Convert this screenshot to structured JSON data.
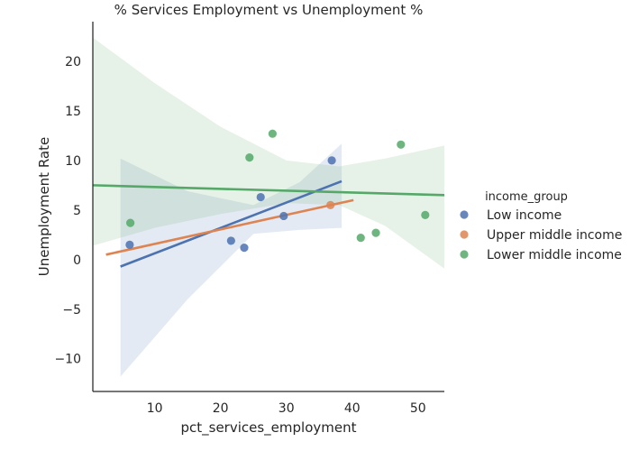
{
  "chart_data": {
    "type": "scatter",
    "title": "% Services Employment vs Unemployment %",
    "xlabel": "pct_services_employment",
    "ylabel": "Unemployment Rate",
    "xlim": [
      0.6,
      54
    ],
    "ylim": [
      -13.3,
      24
    ],
    "xticks": [
      10,
      20,
      30,
      40,
      50
    ],
    "yticks": [
      -10,
      -5,
      0,
      5,
      10,
      15,
      20
    ],
    "xtick_labels": [
      "10",
      "20",
      "30",
      "40",
      "50"
    ],
    "ytick_labels": [
      "−10",
      "−5",
      "0",
      "5",
      "10",
      "15",
      "20"
    ],
    "grid": false,
    "legend": {
      "title": "income_group",
      "placement": "right"
    },
    "series": [
      {
        "name": "Low income",
        "color": "#4c72b0",
        "points": [
          [
            6.2,
            1.5
          ],
          [
            21.6,
            1.9
          ],
          [
            23.6,
            1.2
          ],
          [
            26.1,
            6.3
          ],
          [
            29.6,
            4.4
          ],
          [
            36.9,
            10.0
          ]
        ],
        "fit": [
          [
            4.8,
            -0.7
          ],
          [
            38.4,
            7.9
          ]
        ],
        "band": [
          [
            4.8,
            -11.8,
            10.2
          ],
          [
            15,
            -4.0,
            6.9
          ],
          [
            25,
            2.6,
            5.5
          ],
          [
            32,
            3.0,
            7.8
          ],
          [
            38.4,
            3.2,
            11.7
          ]
        ]
      },
      {
        "name": "Upper middle income",
        "color": "#dd8452",
        "points": [
          [
            36.7,
            5.5
          ]
        ],
        "fit": [
          [
            2.6,
            0.5
          ],
          [
            40.2,
            6.0
          ]
        ]
      },
      {
        "name": "Lower middle income",
        "color": "#55a868",
        "points": [
          [
            6.3,
            3.7
          ],
          [
            24.4,
            10.3
          ],
          [
            27.9,
            12.7
          ],
          [
            41.3,
            2.2
          ],
          [
            43.6,
            2.7
          ],
          [
            47.4,
            11.6
          ],
          [
            51.1,
            4.5
          ]
        ],
        "fit": [
          [
            0.6,
            7.5
          ],
          [
            54,
            6.5
          ]
        ],
        "band": [
          [
            0.6,
            1.4,
            22.4
          ],
          [
            10,
            3.2,
            17.8
          ],
          [
            20,
            4.6,
            13.4
          ],
          [
            30,
            5.7,
            10.0
          ],
          [
            38,
            5.5,
            9.4
          ],
          [
            45,
            3.4,
            10.2
          ],
          [
            54,
            -0.9,
            11.5
          ]
        ]
      }
    ]
  }
}
